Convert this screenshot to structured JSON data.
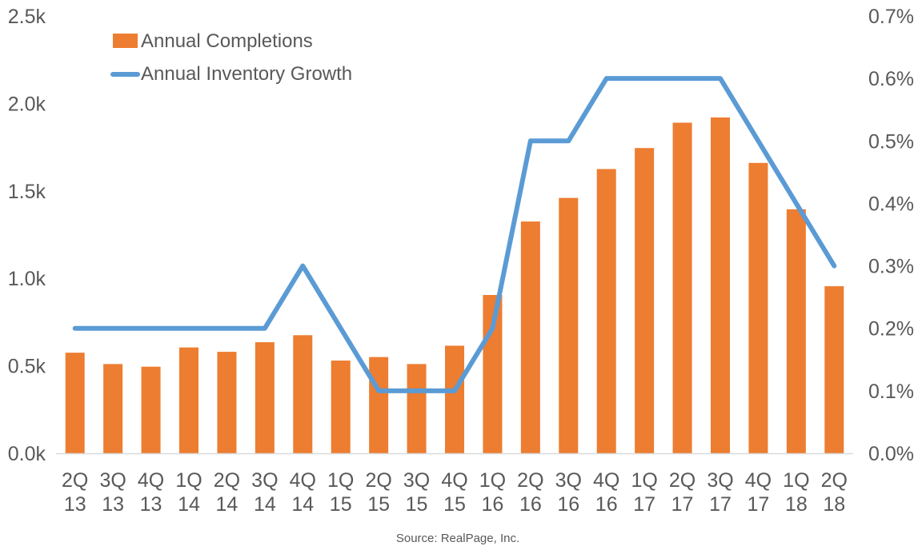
{
  "chart_data": {
    "type": "bar",
    "categories": [
      [
        "2Q",
        "13"
      ],
      [
        "3Q",
        "13"
      ],
      [
        "4Q",
        "13"
      ],
      [
        "1Q",
        "14"
      ],
      [
        "2Q",
        "14"
      ],
      [
        "3Q",
        "14"
      ],
      [
        "4Q",
        "14"
      ],
      [
        "1Q",
        "15"
      ],
      [
        "2Q",
        "15"
      ],
      [
        "3Q",
        "15"
      ],
      [
        "4Q",
        "15"
      ],
      [
        "1Q",
        "16"
      ],
      [
        "2Q",
        "16"
      ],
      [
        "3Q",
        "16"
      ],
      [
        "4Q",
        "16"
      ],
      [
        "1Q",
        "17"
      ],
      [
        "2Q",
        "17"
      ],
      [
        "3Q",
        "17"
      ],
      [
        "4Q",
        "17"
      ],
      [
        "1Q",
        "18"
      ],
      [
        "2Q",
        "18"
      ]
    ],
    "series": [
      {
        "name": "Annual Completions",
        "type": "bar",
        "axis": "left",
        "color": "#ED7D31",
        "values": [
          575,
          510,
          495,
          605,
          580,
          635,
          675,
          530,
          550,
          510,
          615,
          905,
          1325,
          1460,
          1625,
          1745,
          1890,
          1920,
          1660,
          1395,
          955
        ]
      },
      {
        "name": "Annual Inventory Growth",
        "type": "line",
        "axis": "right",
        "color": "#5B9BD5",
        "values": [
          0.2,
          0.2,
          0.2,
          0.2,
          0.2,
          0.2,
          0.3,
          0.2,
          0.1,
          0.1,
          0.1,
          0.2,
          0.5,
          0.5,
          0.6,
          0.6,
          0.6,
          0.6,
          0.5,
          0.4,
          0.3
        ]
      }
    ],
    "y_left": {
      "range": [
        0,
        2500
      ],
      "tick_values": [
        0,
        500,
        1000,
        1500,
        2000,
        2500
      ],
      "tick_labels": [
        "0.0k",
        "0.5k",
        "1.0k",
        "1.5k",
        "2.0k",
        "2.5k"
      ]
    },
    "y_right": {
      "range": [
        0,
        0.7
      ],
      "tick_values": [
        0,
        0.1,
        0.2,
        0.3,
        0.4,
        0.5,
        0.6,
        0.7
      ],
      "tick_labels": [
        "0.0%",
        "0.1%",
        "0.2%",
        "0.3%",
        "0.4%",
        "0.5%",
        "0.6%",
        "0.7%"
      ]
    },
    "grid": false,
    "legend": {
      "placement": "top-left",
      "entries": [
        "Annual Completions",
        "Annual Inventory Growth"
      ]
    },
    "source": "Source: RealPage, Inc."
  }
}
